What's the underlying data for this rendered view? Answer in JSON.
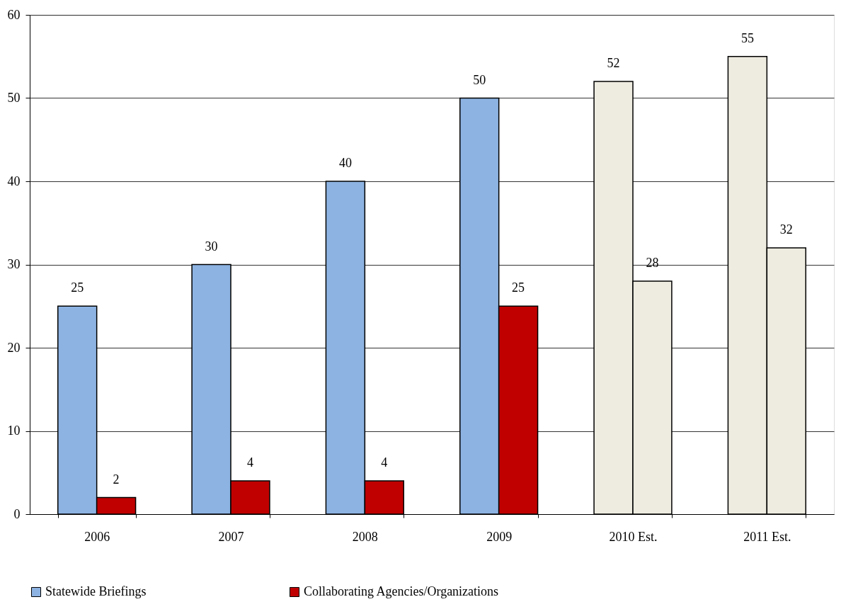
{
  "chart_data": {
    "type": "bar",
    "categories": [
      "2006",
      "2007",
      "2008",
      "2009",
      "2010 Est.",
      "2011 Est."
    ],
    "series": [
      {
        "name": "Statewide Briefings",
        "color": "#8db3e2",
        "values": [
          25,
          30,
          40,
          50,
          52,
          55
        ],
        "colors": [
          "#8db3e2",
          "#8db3e2",
          "#8db3e2",
          "#8db3e2",
          "#eeece1",
          "#eeece1"
        ]
      },
      {
        "name": "Collaborating Agencies/Organizations",
        "color": "#c00000",
        "values": [
          2,
          4,
          4,
          25,
          28,
          32
        ],
        "colors": [
          "#c00000",
          "#c00000",
          "#c00000",
          "#c00000",
          "#eeece1",
          "#eeece1"
        ]
      }
    ],
    "ylim": [
      0,
      60
    ],
    "yticks": [
      0,
      10,
      20,
      30,
      40,
      50,
      60
    ],
    "grid": "y",
    "legend": "bottom",
    "data_labels": true
  }
}
